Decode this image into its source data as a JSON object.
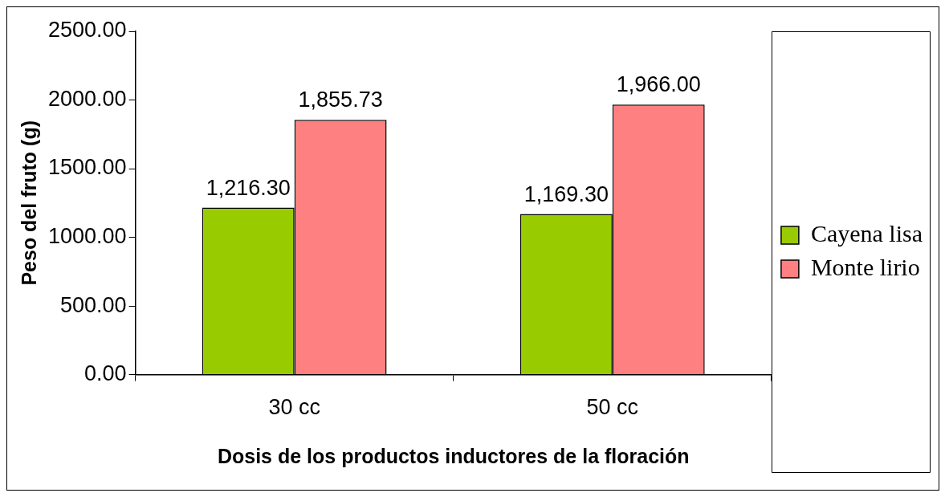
{
  "chart_data": {
    "type": "bar",
    "xlabel": "Dosis de los productos inductores de la floración",
    "ylabel": "Peso del fruto (g)",
    "categories": [
      "30 cc",
      "50 cc"
    ],
    "series": [
      {
        "name": "Cayena lisa",
        "color": "#99cc00",
        "values": [
          1216.3,
          1169.3
        ],
        "value_labels": [
          "1,216.30",
          "1,169.30"
        ]
      },
      {
        "name": "Monte lirio",
        "color": "#ff8080",
        "values": [
          1855.73,
          1966.0
        ],
        "value_labels": [
          "1,855.73",
          "1,966.00"
        ]
      }
    ],
    "ylim": [
      0,
      2500
    ],
    "yticks": [
      {
        "value": 0,
        "label": "0.00"
      },
      {
        "value": 500,
        "label": "500.00"
      },
      {
        "value": 1000,
        "label": "1000.00"
      },
      {
        "value": 1500,
        "label": "1500.00"
      },
      {
        "value": 2000,
        "label": "2000.00"
      },
      {
        "value": 2500,
        "label": "2500.00"
      }
    ],
    "grid": false,
    "legend": "right"
  }
}
